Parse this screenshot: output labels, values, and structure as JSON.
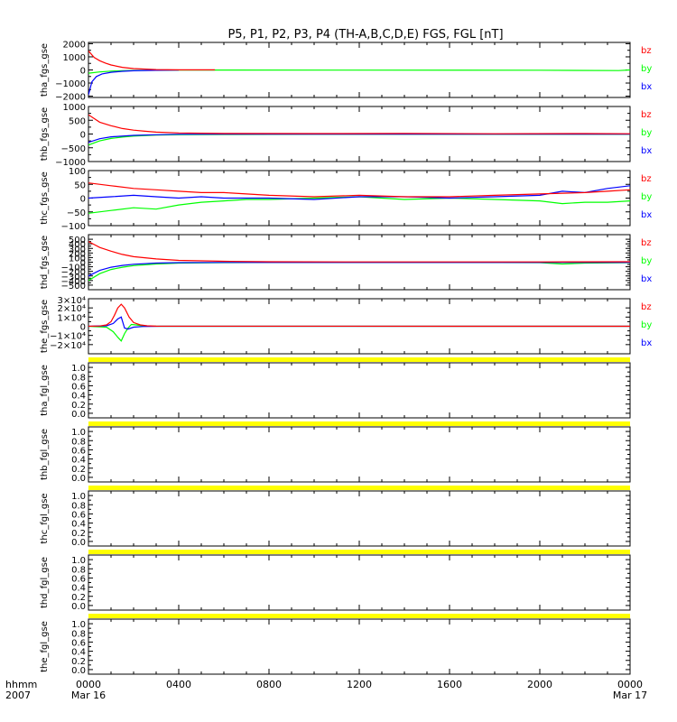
{
  "chart_data": {
    "type": "line",
    "title": "P5, P1, P2, P3, P4 (TH-A,B,C,D,E) FGS, FGL [nT]",
    "x_axis": {
      "header": [
        "hhmm",
        "2007"
      ],
      "range_hours": [
        0,
        24
      ],
      "ticks": [
        {
          "hour": 0,
          "label": "0000",
          "sublabel": "Mar 16"
        },
        {
          "hour": 4,
          "label": "0400",
          "sublabel": ""
        },
        {
          "hour": 8,
          "label": "0800",
          "sublabel": ""
        },
        {
          "hour": 12,
          "label": "1200",
          "sublabel": ""
        },
        {
          "hour": 16,
          "label": "1600",
          "sublabel": ""
        },
        {
          "hour": 20,
          "label": "2000",
          "sublabel": ""
        },
        {
          "hour": 24,
          "label": "0000",
          "sublabel": "Mar 17"
        }
      ]
    },
    "colors": {
      "bz": "#ff0000",
      "by": "#00ff00",
      "bx": "#0000ff",
      "fill": "#ffff00"
    },
    "legend": [
      "bz",
      "by",
      "bx"
    ],
    "panels": [
      {
        "ylabel": "tha_fgs_gse",
        "ylim": [
          -2100,
          2100
        ],
        "yticks": [
          2000,
          1000,
          0,
          -1000,
          -2000
        ],
        "yticklabels": [
          "2000",
          "1000",
          "0",
          "−1000",
          "−2000"
        ],
        "series": [
          {
            "name": "bz",
            "x": [
              0,
              0.25,
              0.5,
              0.75,
              1,
              1.5,
              2,
              3,
              4,
              5.6
            ],
            "y": [
              1450,
              950,
              700,
              520,
              380,
              200,
              100,
              30,
              10,
              5
            ]
          },
          {
            "name": "by",
            "x": [
              0,
              0.5,
              1,
              1.5,
              2,
              3,
              4,
              5.6,
              20,
              23.5,
              24
            ],
            "y": [
              -250,
              -150,
              -90,
              -60,
              -40,
              -20,
              -10,
              -5,
              -20,
              -50,
              0
            ]
          },
          {
            "name": "bx",
            "x": [
              0,
              0.15,
              0.35,
              0.6,
              1,
              1.5,
              2,
              3,
              4
            ],
            "y": [
              -1900,
              -900,
              -500,
              -300,
              -180,
              -100,
              -60,
              -30,
              -10
            ]
          }
        ]
      },
      {
        "ylabel": "thb_fgs_gse",
        "ylim": [
          -1000,
          1000
        ],
        "yticks": [
          1000,
          500,
          0,
          -500,
          -1000
        ],
        "yticklabels": [
          "1000",
          "500",
          "0",
          "−500",
          "−1000"
        ],
        "series": [
          {
            "name": "bz",
            "x": [
              0,
              0.5,
              1,
              1.5,
              2,
              2.5,
              3,
              4,
              6,
              10,
              14,
              18,
              22,
              24
            ],
            "y": [
              700,
              430,
              300,
              200,
              140,
              100,
              70,
              40,
              20,
              15,
              20,
              10,
              15,
              10
            ]
          },
          {
            "name": "by",
            "x": [
              0,
              0.5,
              1,
              1.5,
              2,
              3,
              4,
              6,
              10,
              24
            ],
            "y": [
              -400,
              -250,
              -160,
              -110,
              -75,
              -40,
              -25,
              -15,
              -10,
              -10
            ]
          },
          {
            "name": "bx",
            "x": [
              0,
              0.5,
              1,
              2,
              3,
              4,
              6,
              24
            ],
            "y": [
              -300,
              -170,
              -100,
              -50,
              -25,
              -10,
              -5,
              -5
            ]
          }
        ]
      },
      {
        "ylabel": "thc_fgs_gse",
        "ylim": [
          -100,
          100
        ],
        "yticks": [
          100,
          50,
          0,
          -50,
          -100
        ],
        "yticklabels": [
          "100",
          "50",
          "0",
          "−50",
          "−100"
        ],
        "series": [
          {
            "name": "bz",
            "x": [
              0,
              1,
              2,
              3,
              4,
              5,
              6,
              7,
              8,
              10,
              12,
              14,
              16,
              18,
              20,
              22,
              23,
              24
            ],
            "y": [
              55,
              45,
              35,
              30,
              25,
              20,
              20,
              15,
              10,
              5,
              10,
              5,
              5,
              10,
              15,
              20,
              25,
              30
            ]
          },
          {
            "name": "by",
            "x": [
              0,
              1,
              2,
              3,
              4,
              5,
              6,
              7,
              8,
              10,
              12,
              14,
              16,
              18,
              20,
              21,
              22,
              23,
              24
            ],
            "y": [
              -55,
              -45,
              -35,
              -40,
              -25,
              -15,
              -10,
              -5,
              -5,
              0,
              5,
              -5,
              0,
              -5,
              -10,
              -20,
              -15,
              -15,
              -10
            ]
          },
          {
            "name": "bx",
            "x": [
              0,
              1,
              2,
              3,
              4,
              5,
              6,
              8,
              10,
              12,
              14,
              16,
              18,
              20,
              21,
              22,
              23,
              24
            ],
            "y": [
              0,
              5,
              10,
              5,
              0,
              5,
              0,
              0,
              -5,
              5,
              5,
              0,
              5,
              10,
              25,
              20,
              35,
              45
            ]
          }
        ]
      },
      {
        "ylabel": "thd_fgs_gse",
        "ylim": [
          -600,
          600
        ],
        "yticks": [
          500,
          400,
          300,
          200,
          100,
          0,
          -100,
          -200,
          -300,
          -400,
          -500
        ],
        "yticklabels": [
          "500",
          "400",
          "300",
          "200",
          "100",
          "0",
          "−100",
          "−200",
          "−300",
          "−400",
          "−500"
        ],
        "series": [
          {
            "name": "bz",
            "x": [
              0,
              0.5,
              1,
              1.5,
              2,
              3,
              4,
              6,
              8,
              12,
              16,
              20,
              24
            ],
            "y": [
              450,
              320,
              240,
              170,
              120,
              70,
              40,
              20,
              10,
              5,
              5,
              5,
              10
            ]
          },
          {
            "name": "by",
            "x": [
              0,
              0.5,
              1,
              1.5,
              2,
              3,
              4,
              6,
              8,
              12,
              16,
              20,
              21,
              22,
              24
            ],
            "y": [
              -400,
              -250,
              -160,
              -110,
              -75,
              -40,
              -20,
              -10,
              -5,
              -5,
              -5,
              -10,
              -40,
              -20,
              -10
            ]
          },
          {
            "name": "bx",
            "x": [
              0,
              0.5,
              1,
              1.5,
              2,
              3,
              4,
              6,
              24
            ],
            "y": [
              -300,
              -180,
              -110,
              -70,
              -45,
              -20,
              -10,
              -5,
              -5
            ]
          }
        ]
      },
      {
        "ylabel": "the_fgs_gse",
        "ylim": [
          -30000,
          30000
        ],
        "yticks": [
          20000,
          10000,
          0,
          -10000,
          -20000
        ],
        "yticklabels": [
          "2×10⁴",
          "1×10⁴",
          "0",
          "−1×10⁴",
          "−2×10⁴"
        ],
        "top_label": "3×10⁴",
        "series": [
          {
            "name": "bz",
            "x": [
              0,
              0.5,
              0.8,
              1.0,
              1.15,
              1.3,
              1.45,
              1.6,
              1.8,
              2.0,
              2.3,
              2.6,
              3.0,
              24
            ],
            "y": [
              0,
              300,
              1500,
              5000,
              12000,
              20000,
              24000,
              20000,
              10000,
              4000,
              1500,
              500,
              100,
              0
            ]
          },
          {
            "name": "by",
            "x": [
              0,
              0.8,
              1.1,
              1.3,
              1.45,
              1.6,
              1.75,
              1.9,
              2.1,
              2.4,
              2.8,
              3.2,
              24
            ],
            "y": [
              0,
              -1000,
              -6000,
              -12000,
              -16000,
              -8000,
              -2000,
              2000,
              1500,
              500,
              100,
              0,
              0
            ]
          },
          {
            "name": "bx",
            "x": [
              0,
              0.8,
              1.1,
              1.3,
              1.45,
              1.6,
              1.75,
              2.0,
              2.4,
              2.8,
              3.2,
              24
            ],
            "y": [
              0,
              500,
              3000,
              8000,
              10000,
              -2000,
              -3000,
              -1000,
              -300,
              -100,
              0,
              0
            ]
          }
        ]
      },
      {
        "ylabel": "tha_fgl_gse",
        "ylim": [
          -0.1,
          1.1
        ],
        "yticks": [
          1.0,
          0.8,
          0.6,
          0.4,
          0.2,
          0.0
        ],
        "yticklabels": [
          "1.0",
          "0.8",
          "0.6",
          "0.4",
          "0.2",
          "0.0"
        ],
        "fill_band": "top"
      },
      {
        "ylabel": "thb_fgl_gse",
        "ylim": [
          -0.1,
          1.1
        ],
        "yticks": [
          1.0,
          0.8,
          0.6,
          0.4,
          0.2,
          0.0
        ],
        "yticklabels": [
          "1.0",
          "0.8",
          "0.6",
          "0.4",
          "0.2",
          "0.0"
        ],
        "fill_band": "top"
      },
      {
        "ylabel": "thc_fgl_gse",
        "ylim": [
          -0.1,
          1.1
        ],
        "yticks": [
          1.0,
          0.8,
          0.6,
          0.4,
          0.2,
          0.0
        ],
        "yticklabels": [
          "1.0",
          "0.8",
          "0.6",
          "0.4",
          "0.2",
          "0.0"
        ],
        "fill_band": "top"
      },
      {
        "ylabel": "thd_fgl_gse",
        "ylim": [
          -0.1,
          1.1
        ],
        "yticks": [
          1.0,
          0.8,
          0.6,
          0.4,
          0.2,
          0.0
        ],
        "yticklabels": [
          "1.0",
          "0.8",
          "0.6",
          "0.4",
          "0.2",
          "0.0"
        ],
        "fill_band": "top"
      },
      {
        "ylabel": "the_fgl_gse",
        "ylim": [
          -0.1,
          1.1
        ],
        "yticks": [
          1.0,
          0.8,
          0.6,
          0.4,
          0.2,
          0.0
        ],
        "yticklabels": [
          "1.0",
          "0.8",
          "0.6",
          "0.4",
          "0.2",
          "0.0"
        ],
        "fill_band": "top"
      }
    ]
  }
}
